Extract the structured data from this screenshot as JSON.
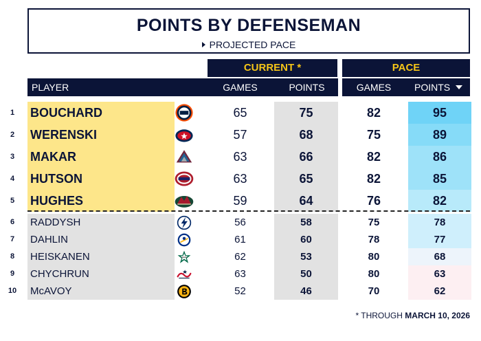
{
  "title": "POINTS BY DEFENSEMAN",
  "subtitle": "PROJECTED PACE",
  "groups": {
    "current": "CURRENT *",
    "pace": "PACE"
  },
  "headers": {
    "player": "PLAYER",
    "games": "GAMES",
    "points": "POINTS",
    "pace_games": "GAMES",
    "pace_points": "POINTS"
  },
  "footnote": {
    "prefix": "* THROUGH ",
    "date": "MARCH 10, 2026"
  },
  "colors": {
    "navy": "#0b1437",
    "gold": "#f5c518",
    "top_highlight": "#fde68a",
    "points_col": "#e2e2e2"
  },
  "chart_data": {
    "type": "table",
    "columns": [
      "Rank",
      "Player",
      "Team",
      "Current Games",
      "Current Points",
      "Pace Games",
      "Pace Points"
    ],
    "sort": {
      "column": "Pace Points",
      "order": "descending"
    },
    "rows": [
      {
        "rank": 1,
        "player": "BOUCHARD",
        "team_logo": "oilers-logo",
        "games": 65,
        "points": 75,
        "pace_games": 82,
        "pace_points": 95
      },
      {
        "rank": 2,
        "player": "WERENSKI",
        "team_logo": "blue-jackets-logo",
        "games": 57,
        "points": 68,
        "pace_games": 75,
        "pace_points": 89
      },
      {
        "rank": 3,
        "player": "MAKAR",
        "team_logo": "avalanche-logo",
        "games": 63,
        "points": 66,
        "pace_games": 82,
        "pace_points": 86
      },
      {
        "rank": 4,
        "player": "HUTSON",
        "team_logo": "canadiens-logo",
        "games": 63,
        "points": 65,
        "pace_games": 82,
        "pace_points": 85
      },
      {
        "rank": 5,
        "player": "HUGHES",
        "team_logo": "wild-logo",
        "games": 59,
        "points": 64,
        "pace_games": 76,
        "pace_points": 82
      },
      {
        "rank": 6,
        "player": "RADDYSH",
        "team_logo": "lightning-logo",
        "games": 56,
        "points": 58,
        "pace_games": 75,
        "pace_points": 78
      },
      {
        "rank": 7,
        "player": "DAHLIN",
        "team_logo": "sabres-logo",
        "games": 61,
        "points": 60,
        "pace_games": 78,
        "pace_points": 77
      },
      {
        "rank": 8,
        "player": "HEISKANEN",
        "team_logo": "stars-logo",
        "games": 62,
        "points": 53,
        "pace_games": 80,
        "pace_points": 68
      },
      {
        "rank": 9,
        "player": "CHYCHRUN",
        "team_logo": "capitals-logo",
        "games": 63,
        "points": 50,
        "pace_games": 80,
        "pace_points": 63
      },
      {
        "rank": 10,
        "player": "McAVOY",
        "team_logo": "bruins-logo",
        "games": 52,
        "points": 46,
        "pace_games": 70,
        "pace_points": 62
      }
    ]
  }
}
